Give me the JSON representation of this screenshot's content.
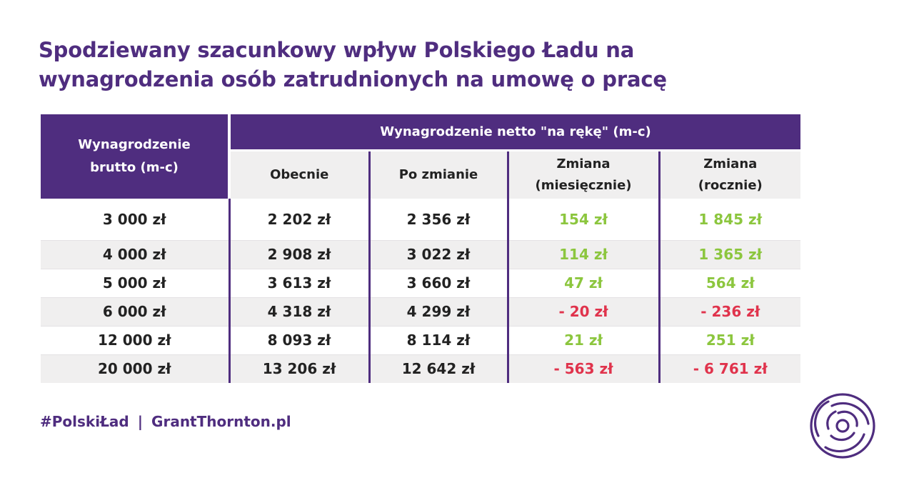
{
  "title": {
    "line1": "Spodziewany szacunkowy wpływ Polskiego Ładu na",
    "line2": "wynagrodzenia osób zatrudnionych na umowę o pracę"
  },
  "table": {
    "brutto_header_line1": "Wynagrodzenie",
    "brutto_header_line2": "brutto (m-c)",
    "netto_header": "Wynagrodzenie netto \"na rękę\" (m-c)",
    "columns": {
      "obecnie": "Obecnie",
      "po_zmianie": "Po zmianie",
      "zmiana_mies_line1": "Zmiana",
      "zmiana_mies_line2": "(miesięcznie)",
      "zmiana_rocz_line1": "Zmiana",
      "zmiana_rocz_line2": "(rocznie)"
    },
    "rows": [
      {
        "brutto": "3 000 zł",
        "obecnie": "2 202 zł",
        "po_zmianie": "2 356 zł",
        "zmiana_mies": "154 zł",
        "zmiana_rocz": "1 845 zł"
      },
      {
        "brutto": "4 000 zł",
        "obecnie": "2 908 zł",
        "po_zmianie": "3 022 zł",
        "zmiana_mies": "114 zł",
        "zmiana_rocz": "1 365 zł"
      },
      {
        "brutto": "5 000 zł",
        "obecnie": "3 613 zł",
        "po_zmianie": "3 660 zł",
        "zmiana_mies": "47 zł",
        "zmiana_rocz": "564 zł"
      },
      {
        "brutto": "6 000 zł",
        "obecnie": "4 318 zł",
        "po_zmianie": "4 299 zł",
        "zmiana_mies": "- 20 zł",
        "zmiana_rocz": "- 236 zł"
      },
      {
        "brutto": "12 000 zł",
        "obecnie": "8 093 zł",
        "po_zmianie": "8 114 zł",
        "zmiana_mies": "21 zł",
        "zmiana_rocz": "251 zł"
      },
      {
        "brutto": "20 000 zł",
        "obecnie": "13 206 zł",
        "po_zmianie": "12 642 zł",
        "zmiana_mies": "- 563 zł",
        "zmiana_rocz": "- 6 761 zł"
      }
    ]
  },
  "footer": {
    "hashtag": "#PolskiŁad",
    "separator": "|",
    "website": "GrantThornton.pl"
  },
  "logo": {
    "icon": "grant-thornton-swirl-icon"
  },
  "colors": {
    "brand_purple": "#4f2d7f",
    "positive_green": "#8cc63e",
    "negative_red": "#e0334c",
    "row_shade": "#f0efef"
  }
}
